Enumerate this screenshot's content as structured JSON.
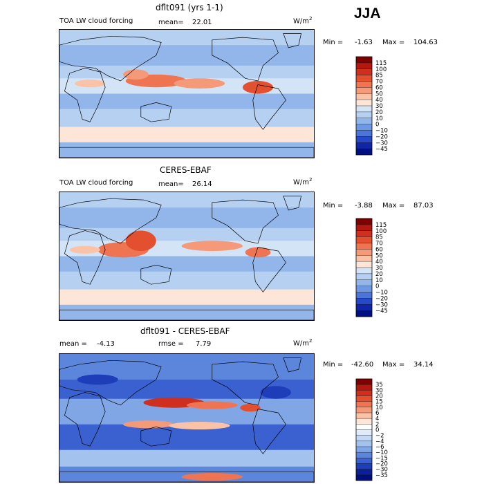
{
  "season": "JJA",
  "panels": [
    {
      "title": "dflt091 (yrs 1-1)",
      "variable": "TOA LW cloud forcing",
      "stat1_label": "mean=",
      "stat1_value": "22.01",
      "stat2_label": "",
      "stat2_value": "",
      "units": "W/m",
      "units_sup": "2",
      "min_label": "Min =",
      "min_value": "-1.63",
      "max_label": "Max =",
      "max_value": "104.63",
      "colorbar_levels": [
        "115",
        "100",
        "85",
        "70",
        "60",
        "50",
        "40",
        "30",
        "20",
        "10",
        "0",
        "−10",
        "−20",
        "−30",
        "−45"
      ]
    },
    {
      "title": "CERES-EBAF",
      "variable": "TOA LW cloud forcing",
      "stat1_label": "mean=",
      "stat1_value": "26.14",
      "stat2_label": "",
      "stat2_value": "",
      "units": "W/m",
      "units_sup": "2",
      "min_label": "Min =",
      "min_value": "-3.88",
      "max_label": "Max =",
      "max_value": "87.03",
      "colorbar_levels": [
        "115",
        "100",
        "85",
        "70",
        "60",
        "50",
        "40",
        "30",
        "20",
        "10",
        "0",
        "−10",
        "−20",
        "−30",
        "−45"
      ]
    },
    {
      "title": "dflt091 - CERES-EBAF",
      "variable": "",
      "stat1_label": "mean =",
      "stat1_value": "-4.13",
      "stat2_label": "rmse =",
      "stat2_value": "7.79",
      "units": "W/m",
      "units_sup": "2",
      "min_label": "Min =",
      "min_value": "-42.60",
      "max_label": "Max =",
      "max_value": "34.14",
      "colorbar_levels": [
        "35",
        "30",
        "20",
        "15",
        "10",
        "6",
        "4",
        "2",
        "0",
        "−2",
        "−4",
        "−6",
        "−10",
        "−15",
        "−20",
        "−30",
        "−35"
      ]
    }
  ],
  "colors": {
    "field_palette": [
      "#7f0000",
      "#b2180e",
      "#cf2f1e",
      "#e2502f",
      "#ef7552",
      "#f59a79",
      "#fac3a8",
      "#fde6d8",
      "#ffffff",
      "#d3e4f7",
      "#b6d0f1",
      "#92b6ea",
      "#6f98e2",
      "#4b76d8",
      "#2749c6",
      "#1026a8",
      "#001083"
    ],
    "diff_palette": [
      "#7f0000",
      "#b2180e",
      "#cf2f1e",
      "#e2502f",
      "#ef7552",
      "#f59a79",
      "#fac3a8",
      "#fde6d8",
      "#ffffff",
      "#e0ebf9",
      "#c4d8f3",
      "#a3c2ee",
      "#80a6e6",
      "#5c86dc",
      "#3a61cf",
      "#1d3db9",
      "#0a1f98",
      "#000f7a"
    ],
    "coastline": "#000000"
  }
}
